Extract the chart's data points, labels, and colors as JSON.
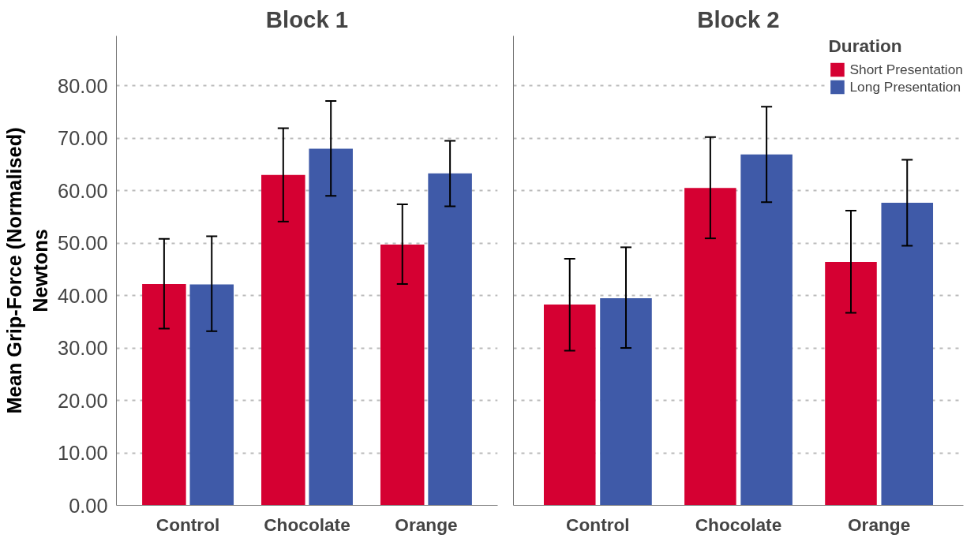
{
  "chart_data": [
    {
      "type": "bar",
      "title": "Block 1",
      "ylabel": "Mean Grip-Force (Normalised)\nNewtons",
      "categories": [
        "Control",
        "Chocolate",
        "Orange"
      ],
      "series": [
        {
          "color": "#d50032",
          "values": [
            42.2,
            63.0,
            49.7
          ],
          "errors": [
            [
              33.7,
              50.8
            ],
            [
              54.1,
              71.9
            ],
            [
              42.2,
              57.4
            ]
          ]
        },
        {
          "color": "#3f5aa8",
          "values": [
            42.1,
            68.0,
            63.3
          ],
          "errors": [
            [
              33.2,
              51.3
            ],
            [
              59.0,
              77.1
            ],
            [
              57.0,
              69.5
            ]
          ]
        }
      ],
      "ylim": [
        0,
        89.5
      ],
      "yticks": [
        {
          "value": 0,
          "label": "0.00"
        },
        {
          "value": 10,
          "label": "10.00"
        },
        {
          "value": 20,
          "label": "20.00"
        },
        {
          "value": 30,
          "label": "30.00"
        },
        {
          "value": 40,
          "label": "40.00"
        },
        {
          "value": 50,
          "label": "50.00"
        },
        {
          "value": 60,
          "label": "60.00"
        },
        {
          "value": 70,
          "label": "70.00"
        },
        {
          "value": 80,
          "label": "80.00"
        }
      ],
      "grid": "y",
      "legend": false
    },
    {
      "type": "bar",
      "title": "Block 2",
      "legend_title": "Duration",
      "categories": [
        "Control",
        "Chocolate",
        "Orange"
      ],
      "series": [
        {
          "name": "Short Presentation",
          "color": "#d50032",
          "values": [
            38.3,
            60.5,
            46.4
          ],
          "errors": [
            [
              29.5,
              47.0
            ],
            [
              50.9,
              70.2
            ],
            [
              36.7,
              56.2
            ]
          ]
        },
        {
          "name": "Long Presentation",
          "color": "#3f5aa8",
          "values": [
            39.5,
            66.9,
            57.7
          ],
          "errors": [
            [
              30.0,
              49.2
            ],
            [
              57.8,
              76.0
            ],
            [
              49.5,
              65.9
            ]
          ]
        }
      ],
      "ylim": [
        0,
        89.5
      ],
      "yticks": [
        0,
        10,
        20,
        30,
        40,
        50,
        60,
        70,
        80
      ],
      "grid": "y",
      "legend": "top right",
      "tick_labels": "x"
    }
  ]
}
